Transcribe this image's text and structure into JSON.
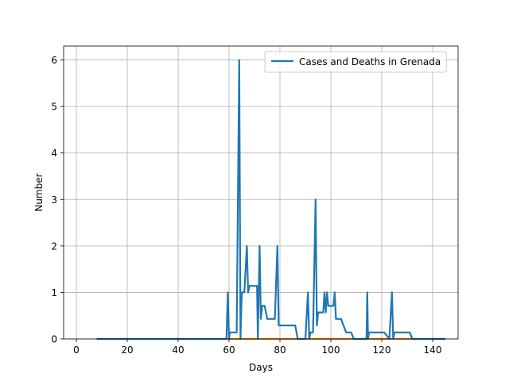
{
  "chart_data": {
    "type": "line",
    "title": "",
    "xlabel": "Days",
    "ylabel": "Number",
    "xlim": [
      -5,
      150
    ],
    "ylim": [
      0,
      6.3
    ],
    "xticks": [
      0,
      20,
      40,
      60,
      80,
      100,
      120,
      140
    ],
    "yticks": [
      0,
      1,
      2,
      3,
      4,
      5,
      6
    ],
    "grid": true,
    "legend_position": "top-right",
    "colors": {
      "cases": "#1f77b4",
      "deaths": "#ff7f0e"
    },
    "series": [
      {
        "name": "Cases and Deaths in Grenada",
        "color": "#1f77b4",
        "points": [
          [
            8,
            0
          ],
          [
            59,
            0
          ],
          [
            59.5,
            1
          ],
          [
            60,
            0
          ],
          [
            60.3,
            0.14
          ],
          [
            63,
            0.14
          ],
          [
            64,
            6
          ],
          [
            64.5,
            0
          ],
          [
            65,
            1
          ],
          [
            66,
            1
          ],
          [
            67,
            2
          ],
          [
            67.5,
            1
          ],
          [
            68,
            1.14
          ],
          [
            71,
            1.14
          ],
          [
            71.3,
            0
          ],
          [
            72,
            2
          ],
          [
            72.5,
            0.43
          ],
          [
            73,
            0.71
          ],
          [
            74,
            0.71
          ],
          [
            75,
            0.43
          ],
          [
            78,
            0.43
          ],
          [
            79,
            2
          ],
          [
            79.5,
            0.29
          ],
          [
            81,
            0.29
          ],
          [
            86,
            0.29
          ],
          [
            87,
            0
          ],
          [
            90,
            0
          ],
          [
            91,
            1
          ],
          [
            91.5,
            0
          ],
          [
            92,
            0.14
          ],
          [
            93,
            0.14
          ],
          [
            94,
            3
          ],
          [
            94.5,
            0.29
          ],
          [
            95,
            0.57
          ],
          [
            97,
            0.57
          ],
          [
            97.5,
            1
          ],
          [
            98,
            0.57
          ],
          [
            98.5,
            1
          ],
          [
            99,
            0.71
          ],
          [
            101,
            0.71
          ],
          [
            101.5,
            1
          ],
          [
            102,
            0.43
          ],
          [
            104,
            0.43
          ],
          [
            106,
            0.14
          ],
          [
            108,
            0.14
          ],
          [
            109,
            0
          ],
          [
            114,
            0
          ],
          [
            114.3,
            1
          ],
          [
            114.6,
            0
          ],
          [
            115,
            0.14
          ],
          [
            121,
            0.14
          ],
          [
            123,
            0
          ],
          [
            124,
            1
          ],
          [
            124.5,
            0
          ],
          [
            125,
            0.14
          ],
          [
            131,
            0.14
          ],
          [
            132,
            0
          ],
          [
            145,
            0
          ]
        ]
      },
      {
        "name": "",
        "color": "#ff7f0e",
        "points": [
          [
            8,
            0
          ],
          [
            145,
            0
          ]
        ]
      }
    ],
    "legend_entries": [
      "Cases and Deaths in Grenada"
    ]
  }
}
